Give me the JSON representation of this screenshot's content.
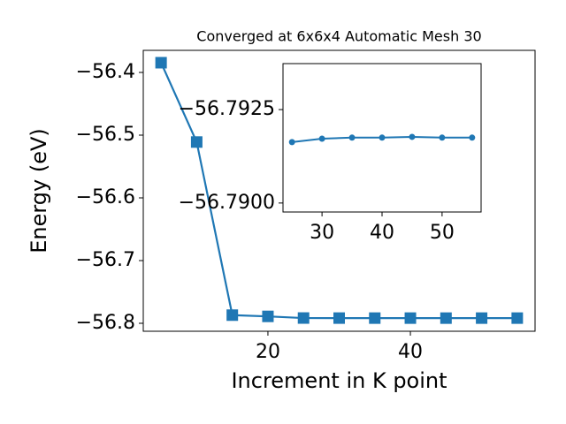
{
  "chart_data": [
    {
      "type": "line",
      "title": "Converged at 6x6x4 Automatic Mesh 30",
      "x_label": "Increment in K point",
      "y_label": "Energy (eV)",
      "x": [
        5,
        10,
        15,
        20,
        25,
        30,
        35,
        40,
        45,
        50,
        55
      ],
      "series": [
        {
          "color": "#1f77b4",
          "marker": "square",
          "values": [
            -56.3845,
            -56.511,
            -56.787,
            -56.789,
            -56.79163,
            -56.79172,
            -56.79175,
            -56.79175,
            -56.79177,
            -56.79175,
            -56.79175
          ]
        }
      ],
      "xlim": [
        2.5,
        57.5
      ],
      "ylim": [
        -56.8127,
        -56.3648
      ],
      "xticks": [
        20,
        40
      ],
      "yticks": [
        {
          "value": -56.8,
          "label": "−56.8"
        },
        {
          "value": -56.7,
          "label": "−56.7"
        },
        {
          "value": -56.6,
          "label": "−56.6"
        },
        {
          "value": -56.5,
          "label": "−56.5"
        },
        {
          "value": -56.4,
          "label": "−56.4"
        }
      ]
    },
    {
      "type": "line",
      "x": [
        25,
        30,
        35,
        40,
        45,
        50,
        55
      ],
      "series": [
        {
          "color": "#1f77b4",
          "marker": "circle",
          "values": [
            -56.79163,
            -56.79172,
            -56.79175,
            -56.79175,
            -56.79177,
            -56.79175,
            -56.79175
          ]
        }
      ],
      "xlim": [
        23.5,
        56.5
      ],
      "ylim": [
        -56.78976,
        -56.79373
      ],
      "xticks": [
        30,
        40,
        50
      ],
      "yticks": [
        {
          "value": -56.79,
          "label": "−56.7900"
        },
        {
          "value": -56.7925,
          "label": "−56.7925"
        }
      ]
    }
  ]
}
